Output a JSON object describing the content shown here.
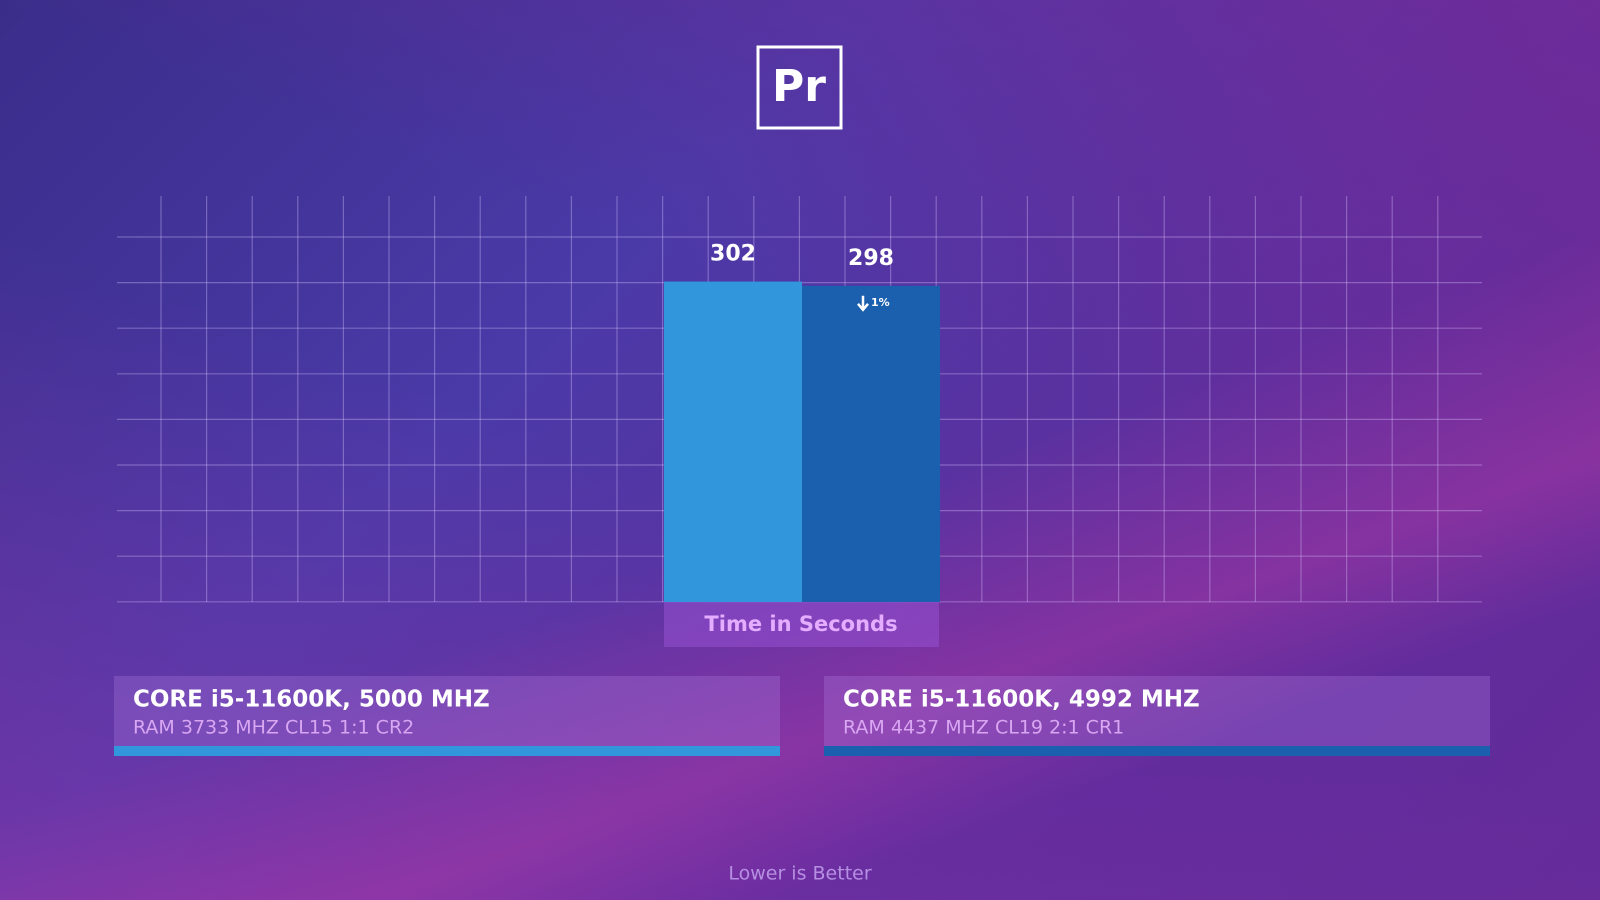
{
  "chart_data": {
    "type": "bar",
    "logo": "Pr",
    "x_label": "Time in Seconds",
    "annotation": "1%",
    "note": "Lower is Better",
    "categories": [
      null
    ],
    "series": [
      {
        "name": "CORE i5-11600K, 5000 MHZ",
        "detail": "RAM 3733 MHZ CL15 1:1 CR2",
        "color": "#3196dc",
        "values": [
          302
        ]
      },
      {
        "name": "CORE i5-11600K, 4992 MHZ",
        "detail": "RAM 4437 MHZ CL19 2:1 CR1",
        "color": "#1b60ae",
        "values": [
          298
        ]
      }
    ],
    "ylim": [
      0,
      344
    ]
  }
}
